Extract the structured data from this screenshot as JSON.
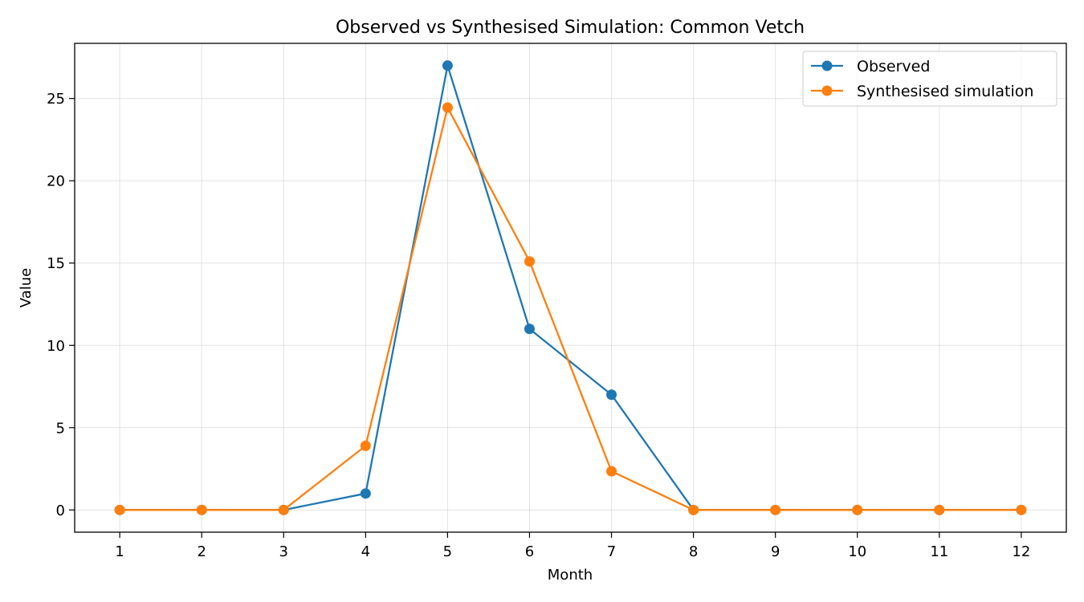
{
  "chart_data": {
    "type": "line",
    "title": "Observed vs Synthesised Simulation: Common Vetch",
    "xlabel": "Month",
    "ylabel": "Value",
    "x": [
      1,
      2,
      3,
      4,
      5,
      6,
      7,
      8,
      9,
      10,
      11,
      12
    ],
    "xlim": [
      0.45,
      12.55
    ],
    "ylim": [
      -1.35,
      28.35
    ],
    "yticks": [
      0,
      5,
      10,
      15,
      20,
      25
    ],
    "grid": true,
    "legend_position": "top-right",
    "series": [
      {
        "name": "Observed",
        "color": "#1f77b4",
        "marker": "circle",
        "values": [
          0,
          0,
          0,
          1,
          27,
          11,
          7,
          0,
          0,
          0,
          0,
          0
        ]
      },
      {
        "name": "Synthesised simulation",
        "color": "#ff7f0e",
        "marker": "circle",
        "values": [
          0,
          0,
          0,
          3.9,
          24.45,
          15.1,
          2.35,
          0,
          0,
          0,
          0,
          0
        ]
      }
    ]
  }
}
